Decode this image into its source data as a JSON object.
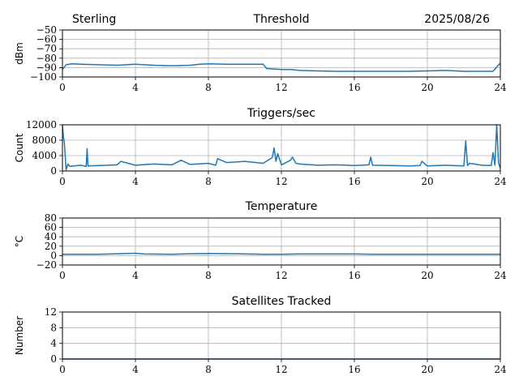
{
  "header": {
    "station": "Sterling",
    "date": "2025/08/26"
  },
  "chart_data": [
    {
      "type": "line",
      "title": "Threshold",
      "ylabel": "dBm",
      "xlim": [
        0,
        24
      ],
      "ylim": [
        -100,
        -50
      ],
      "xticks": [
        0,
        4,
        8,
        12,
        16,
        20,
        24
      ],
      "yticks": [
        -100,
        -90,
        -80,
        -70,
        -60,
        -50
      ],
      "ytick_labels": [
        "−100",
        "−90",
        "−80",
        "−70",
        "−60",
        "−50"
      ],
      "grid": true,
      "series": [
        {
          "x": [
            0,
            0.2,
            0.5,
            1,
            2,
            3,
            4,
            5,
            6,
            7,
            7.5,
            8,
            9,
            10,
            11,
            11.2,
            12,
            12.5,
            13,
            14,
            15,
            16,
            17,
            18,
            19,
            20,
            21,
            22,
            23,
            23.6,
            24
          ],
          "y": [
            -92,
            -87,
            -86,
            -86.5,
            -87,
            -87.5,
            -86.5,
            -87.5,
            -88,
            -87.5,
            -86.5,
            -86,
            -86.5,
            -86.5,
            -86.5,
            -91,
            -92,
            -92,
            -93,
            -93.5,
            -94,
            -94,
            -94,
            -94,
            -94,
            -93.5,
            -93,
            -94,
            -94,
            -94,
            -85
          ]
        }
      ]
    },
    {
      "type": "line",
      "title": "Triggers/sec",
      "ylabel": "Count",
      "xlim": [
        0,
        24
      ],
      "ylim": [
        0,
        12000
      ],
      "xticks": [
        0,
        4,
        8,
        12,
        16,
        20,
        24
      ],
      "yticks": [
        0,
        4000,
        8000,
        12000
      ],
      "ytick_labels": [
        "0",
        "4000",
        "8000",
        "12000"
      ],
      "grid": true,
      "series": [
        {
          "x": [
            0,
            0.05,
            0.1,
            0.2,
            0.3,
            0.4,
            1,
            1.3,
            1.35,
            1.4,
            2,
            3,
            3.2,
            4,
            5,
            6,
            6.5,
            7,
            8,
            8.4,
            8.5,
            9,
            10,
            11,
            11.5,
            11.6,
            11.7,
            11.8,
            12,
            12.5,
            12.6,
            12.8,
            13,
            14,
            15,
            16,
            16.8,
            16.9,
            17,
            18,
            19,
            19.6,
            19.7,
            20,
            21,
            22,
            22.1,
            22.2,
            22.3,
            23,
            23.5,
            23.6,
            23.7,
            23.8,
            23.9,
            24
          ],
          "y": [
            12000,
            9000,
            7500,
            300,
            1800,
            1200,
            1500,
            1200,
            5800,
            1300,
            1400,
            1600,
            2500,
            1500,
            1800,
            1600,
            2800,
            1700,
            2000,
            1500,
            3200,
            2200,
            2500,
            2000,
            3500,
            6000,
            2500,
            4500,
            1600,
            2800,
            3600,
            2000,
            1800,
            1500,
            1600,
            1400,
            1600,
            3600,
            1500,
            1400,
            1300,
            1400,
            2500,
            1300,
            1500,
            1300,
            7800,
            1400,
            2000,
            1500,
            1400,
            4800,
            1500,
            12000,
            2000,
            800
          ]
        }
      ]
    },
    {
      "type": "line",
      "title": "Temperature",
      "ylabel": "°C",
      "xlim": [
        0,
        24
      ],
      "ylim": [
        -20,
        80
      ],
      "xticks": [
        0,
        4,
        8,
        12,
        16,
        20,
        24
      ],
      "yticks": [
        -20,
        0,
        20,
        40,
        60,
        80
      ],
      "ytick_labels": [
        "−20",
        "0",
        "20",
        "40",
        "60",
        "80"
      ],
      "grid": true,
      "series": [
        {
          "x": [
            0,
            2,
            3,
            4,
            4.5,
            6,
            7,
            8,
            9.5,
            11,
            12,
            13,
            14,
            16,
            17,
            18,
            20,
            22,
            24
          ],
          "y": [
            3,
            3,
            4,
            5,
            3.5,
            3,
            4,
            4.5,
            4,
            3,
            3,
            3.5,
            3.5,
            3.5,
            3,
            3,
            3,
            3,
            3
          ]
        }
      ]
    },
    {
      "type": "line",
      "title": "Satellites Tracked",
      "ylabel": "Number",
      "xlim": [
        0,
        24
      ],
      "ylim": [
        0,
        12
      ],
      "xticks": [
        0,
        4,
        8,
        12,
        16,
        20,
        24
      ],
      "yticks": [
        0,
        4,
        8,
        12
      ],
      "ytick_labels": [
        "0",
        "4",
        "8",
        "12"
      ],
      "grid": true,
      "series": [
        {
          "x": [
            0,
            24
          ],
          "y": [
            0,
            0
          ]
        }
      ]
    }
  ]
}
